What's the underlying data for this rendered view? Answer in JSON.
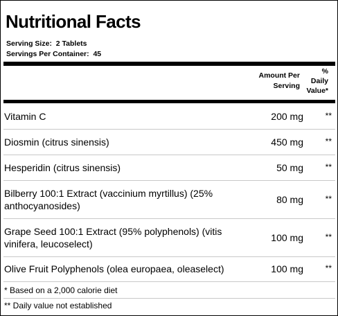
{
  "title": "Nutritional Facts",
  "serving": {
    "size_label": "Serving Size:  2 Tablets",
    "per_container_label": "Servings Per Container:  45"
  },
  "header": {
    "amount_line1": "Amount Per",
    "amount_line2": "Serving",
    "dv_line1": "%",
    "dv_line2": "Daily",
    "dv_line3": "Value*"
  },
  "rows": [
    {
      "name": "Vitamin C",
      "amount": "200 mg",
      "dv": "**"
    },
    {
      "name": "Diosmin (citrus sinensis)",
      "amount": "450 mg",
      "dv": "**"
    },
    {
      "name": "Hesperidin (citrus sinensis)",
      "amount": "50 mg",
      "dv": "**"
    },
    {
      "name": "Bilberry 100:1 Extract (vaccinium myrtillus) (25% anthocyanosides)",
      "amount": "80 mg",
      "dv": "**"
    },
    {
      "name": "Grape Seed 100:1 Extract (95% polyphenols) (vitis vinifera, leucoselect)",
      "amount": "100 mg",
      "dv": "**"
    },
    {
      "name": "Olive Fruit Polyphenols (olea europaea, oleaselect)",
      "amount": "100 mg",
      "dv": "**"
    }
  ],
  "footnotes": {
    "calorie_note": "* Based on a 2,000 calorie diet",
    "dv_note": "** Daily value not established"
  }
}
